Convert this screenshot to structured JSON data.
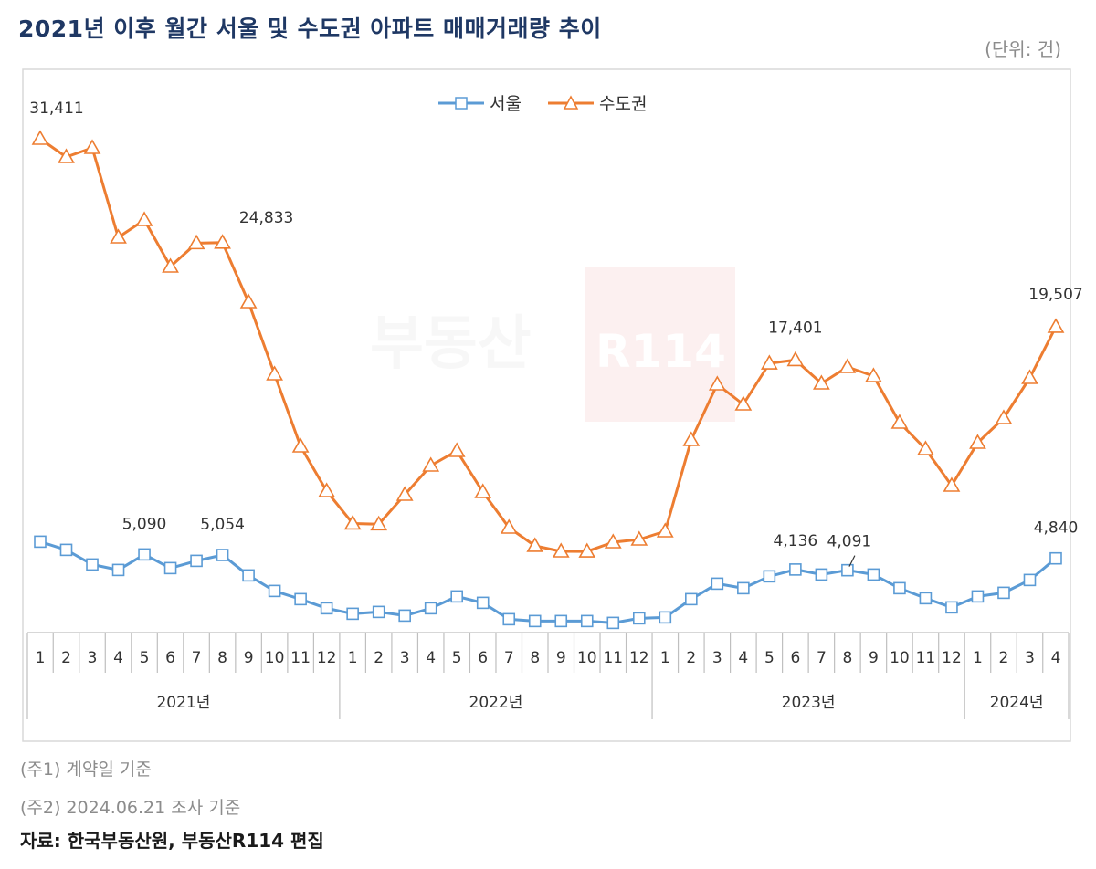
{
  "title": "2021년 이후 월간 서울 및 수도권 아파트  매매거래량 추이",
  "unit": "(단위: 건)",
  "notes": [
    "(주1) 계약일 기준",
    "(주2) 2024.06.21 조사 기준"
  ],
  "source": "자료: 한국부동산원, 부동산R114 편집",
  "watermark": "부동산R114",
  "chart_data": {
    "type": "line",
    "title": "",
    "xlabel": "",
    "ylabel": "",
    "ylim": [
      0,
      31500
    ],
    "grid": false,
    "legend_position": "top-center",
    "years": [
      {
        "label": "2021년",
        "months": [
          "1",
          "2",
          "3",
          "4",
          "5",
          "6",
          "7",
          "8",
          "9",
          "10",
          "11",
          "12"
        ]
      },
      {
        "label": "2022년",
        "months": [
          "1",
          "2",
          "3",
          "4",
          "5",
          "6",
          "7",
          "8",
          "9",
          "10",
          "11",
          "12"
        ]
      },
      {
        "label": "2023년",
        "months": [
          "1",
          "2",
          "3",
          "4",
          "5",
          "6",
          "7",
          "8",
          "9",
          "10",
          "11",
          "12"
        ]
      },
      {
        "label": "2024년",
        "months": [
          "1",
          "2",
          "3",
          "4"
        ]
      }
    ],
    "series": [
      {
        "name": "서울",
        "color": "#5b9bd5",
        "marker": "square",
        "values": [
          5899,
          5379,
          4454,
          4107,
          5090,
          4223,
          4685,
          5054,
          3761,
          2778,
          2258,
          1680,
          1333,
          1449,
          1217,
          1680,
          2431,
          2027,
          986,
          871,
          871,
          871,
          755,
          1044,
          1102,
          2258,
          3240,
          2951,
          3703,
          4136,
          3818,
          4091,
          3818,
          2951,
          2316,
          1738,
          2431,
          2662,
          3472,
          4840
        ],
        "data_labels": {
          "4": "5,090",
          "7": "5,054",
          "29": "4,136",
          "31": "4,091",
          "39": "4,840"
        }
      },
      {
        "name": "수도권",
        "color": "#ed7d31",
        "marker": "triangle",
        "values": [
          31411,
          30255,
          30833,
          25169,
          26267,
          23319,
          24800,
          24833,
          21065,
          16498,
          11932,
          9100,
          7050,
          7000,
          8869,
          10719,
          11644,
          9042,
          6788,
          5633,
          5286,
          5280,
          5864,
          6037,
          6557,
          12337,
          15863,
          14591,
          17190,
          17401,
          15921,
          16961,
          16383,
          13435,
          11759,
          9447,
          12164,
          13724,
          16268,
          19507
        ],
        "data_labels": {
          "0": "31,411",
          "7": "24,833",
          "29": "17,401",
          "39": "19,507"
        }
      }
    ]
  }
}
